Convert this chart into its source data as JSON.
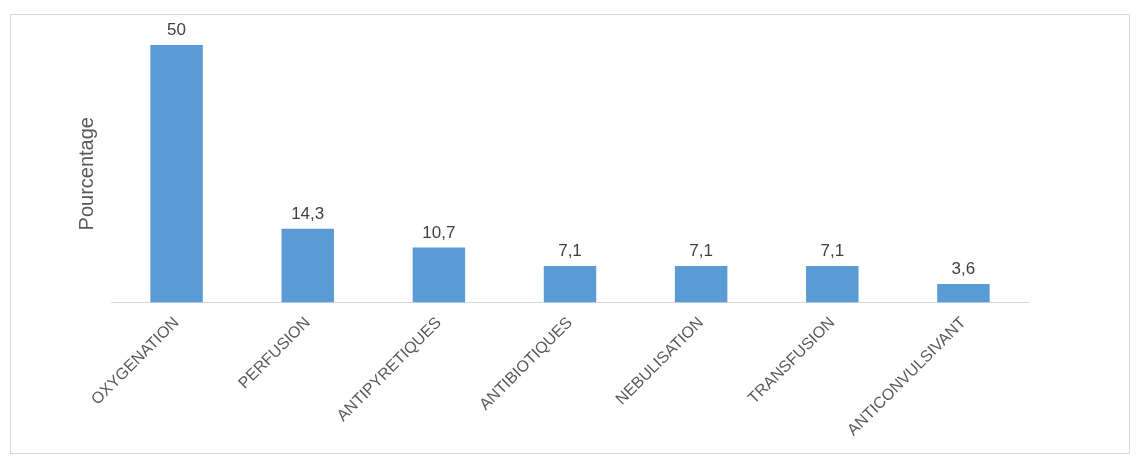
{
  "chart_data": {
    "type": "bar",
    "ylabel": "Pourcentage",
    "categories": [
      "OXYGENATION",
      "PERFUSION",
      "ANTIPYRETIQUES",
      "ANTIBIOTIQUES",
      "NEBULISATION",
      "TRANSFUSION",
      "ANTICONVULSIVANT"
    ],
    "values": [
      50,
      14.3,
      10.7,
      7.1,
      7.1,
      7.1,
      3.6
    ],
    "value_labels": [
      "50",
      "14,3",
      "10,7",
      "7,1",
      "7,1",
      "7,1",
      "3,6"
    ],
    "color": "#5b9bd5"
  }
}
